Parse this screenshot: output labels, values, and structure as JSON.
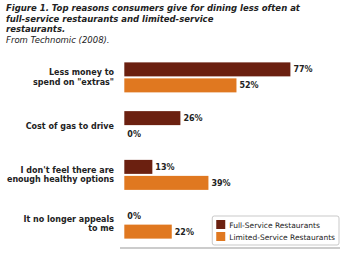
{
  "chart_data": {
    "type": "bar",
    "orientation": "horizontal",
    "title": "Figure 1. Top reasons consumers give for dining less often at full-service restaurants and limited-service\nrestaurants.",
    "subtitle": "From Technomic (2008).",
    "categories": [
      "Less money to\nspend on \"extras\"",
      "Cost of gas to drive",
      "I don't feel there are\nenough healthy options",
      "It no longer appeals\nto me"
    ],
    "series": [
      {
        "name": "Full-Service Restaurants",
        "color": "#6b2010",
        "values": [
          77,
          26,
          13,
          0
        ],
        "value_labels": [
          "77%",
          "26%",
          "13%",
          "0%"
        ]
      },
      {
        "name": "Limited-Service Restaurants",
        "color": "#e07820",
        "values": [
          52,
          0,
          39,
          22
        ],
        "value_labels": [
          "52%",
          "0%",
          "39%",
          "22%"
        ]
      }
    ],
    "xlim": [
      -2,
      100
    ],
    "data_labels": true,
    "legend": "lower right",
    "grid": false,
    "tick_labels": "y"
  }
}
